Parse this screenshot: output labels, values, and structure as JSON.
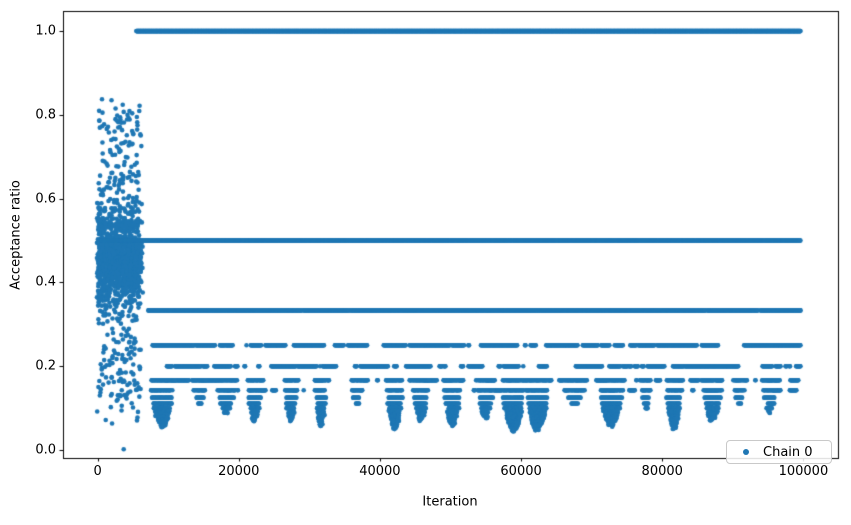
{
  "chart_data": {
    "type": "scatter",
    "title": "",
    "xlabel": "Iteration",
    "ylabel": "Acceptance ratio",
    "legend": [
      {
        "label": "Chain 0",
        "color": "#1f77b4"
      }
    ],
    "legend_position": "lower right",
    "grid": false,
    "axes": {
      "xlim": [
        -4900,
        104900
      ],
      "ylim": [
        -0.019,
        1.048
      ],
      "spine_color": "#000000"
    },
    "x_ticks": {
      "values": [
        0,
        20000,
        40000,
        60000,
        80000,
        100000
      ],
      "labels": [
        "0",
        "20000",
        "40000",
        "60000",
        "80000",
        "100000"
      ]
    },
    "y_ticks": {
      "values": [
        0.0,
        0.2,
        0.4,
        0.6,
        0.8,
        1.0
      ],
      "labels": [
        "0.0",
        "0.2",
        "0.4",
        "0.6",
        "0.8",
        "1.0"
      ]
    },
    "marker": {
      "radius_px": 2.3,
      "color": "#1f77b4"
    },
    "series": [
      {
        "name": "Chain 0",
        "description": "MCMC acceptance ratio trace: dense burn-in cloud for iterations 0-6400 spanning ratios 0.0-0.9, then values concentrated on harmonic bands 1/k (1.0, 0.5, 0.333, 0.25, 0.2, 0.167, 0.143, ...) with periodic descending dip clusters reaching ~0.045",
        "generation": {
          "seed": 12345,
          "burn_in": {
            "start": 0,
            "end": 6400,
            "step": 6,
            "mean": 0.46,
            "sd": 0.16,
            "uniform_frac": 0.25,
            "uniform_min": 0.06,
            "uniform_max": 0.84,
            "y_min": 0.01,
            "y_max": 0.92,
            "taper_start": 5600,
            "zero_point": {
              "x": 3700,
              "y": 0.002
            }
          },
          "band_step": 48,
          "band_end": 99600,
          "bands": [
            {
              "value": 1.0,
              "start": 5500,
              "solid": true,
              "p_off": 0,
              "p_on": 0
            },
            {
              "value": 0.5,
              "start": 400,
              "solid": true,
              "p_off": 0,
              "p_on": 0
            },
            {
              "value": 0.33333,
              "start": 7000,
              "solid": false,
              "p_off": 0.004,
              "p_on": 0.12
            },
            {
              "value": 0.25,
              "start": 7600,
              "solid": false,
              "p_off": 0.018,
              "p_on": 0.05
            },
            {
              "value": 0.2,
              "start": 8000,
              "solid": false,
              "p_off": 0.03,
              "p_on": 0.04
            },
            {
              "value": 0.16667,
              "start": 8500,
              "solid": false,
              "p_off": 0.06,
              "p_on": 0.022
            },
            {
              "value": 0.14286,
              "start": 8900,
              "solid": false,
              "p_off": 0.1,
              "p_on": 0.016
            }
          ],
          "dips": {
            "first": 9200,
            "last": 97500,
            "spacing_min": 3300,
            "spacing_max": 5800,
            "k_top": 6,
            "depth_min": 9,
            "depth_max": 22,
            "halfwidth_min": 700,
            "halfwidth_max": 1800,
            "level_step": 55,
            "keep_prob": 0.8
          }
        }
      }
    ]
  }
}
